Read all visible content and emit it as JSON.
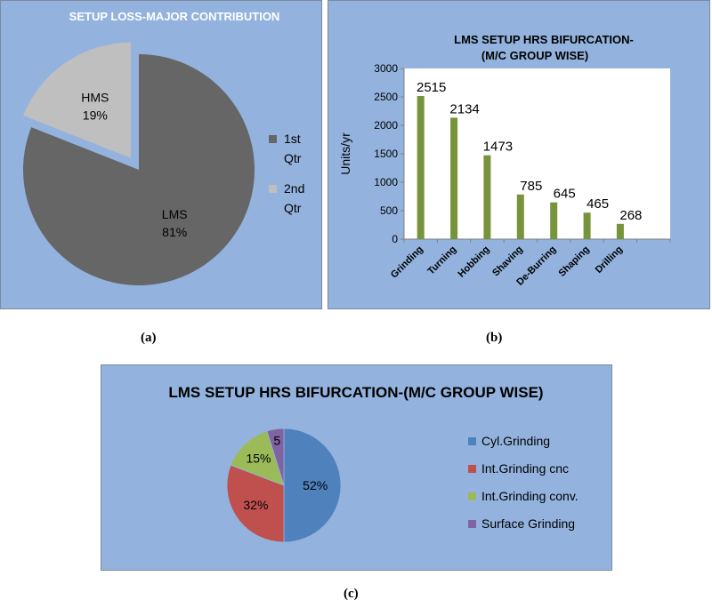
{
  "captions": {
    "a": "(a)",
    "b": "(b)",
    "c": "(c)"
  },
  "chart_data": [
    {
      "type": "pie",
      "title": "SETUP LOSS-MAJOR CONTRIBUTION",
      "slices": [
        {
          "label": "LMS",
          "percent_label": "81%",
          "value": 81,
          "color": "#666666",
          "exploded": false
        },
        {
          "label": "HMS",
          "percent_label": "19%",
          "value": 19,
          "color": "#bfbfbf",
          "exploded": true
        }
      ],
      "legend": {
        "position": "right",
        "entries": [
          {
            "lines": [
              "1st",
              "Qtr"
            ],
            "color": "#666666"
          },
          {
            "lines": [
              "2nd",
              "Qtr"
            ],
            "color": "#bfbfbf"
          }
        ]
      }
    },
    {
      "type": "bar",
      "title_lines": [
        "LMS SETUP HRS BIFURCATION-",
        "(M/C GROUP WISE)"
      ],
      "categories": [
        "Grinding",
        "Turning",
        "Hobbing",
        "Shaving",
        "De-Burring",
        "Shaping",
        "Drilling"
      ],
      "values": [
        2515,
        2134,
        1473,
        785,
        645,
        465,
        268
      ],
      "data_labels": [
        "2515",
        "2134",
        "1473",
        "785",
        "645",
        "465",
        "268"
      ],
      "ylabel": "Units/yr",
      "ylim": [
        0,
        3000
      ],
      "yticks": [
        "0",
        "500",
        "1000",
        "1500",
        "2000",
        "2500",
        "3000"
      ],
      "bar_color": "#77933c",
      "grid": false
    },
    {
      "type": "pie",
      "title": "LMS SETUP HRS BIFURCATION-(M/C GROUP WISE)",
      "slices": [
        {
          "label": "Cyl.Grinding",
          "percent_label": "52%",
          "value": 52,
          "color": "#4f81bd"
        },
        {
          "label": "Int.Grinding cnc",
          "percent_label": "32%",
          "value": 32,
          "color": "#c0504d"
        },
        {
          "label": "Int.Grinding conv.",
          "percent_label": "15%",
          "value": 15,
          "color": "#9bbb59"
        },
        {
          "label": "Surface Grinding",
          "percent_label": "5",
          "value": 5,
          "color": "#8064a2"
        }
      ],
      "legend": {
        "position": "right"
      }
    }
  ]
}
